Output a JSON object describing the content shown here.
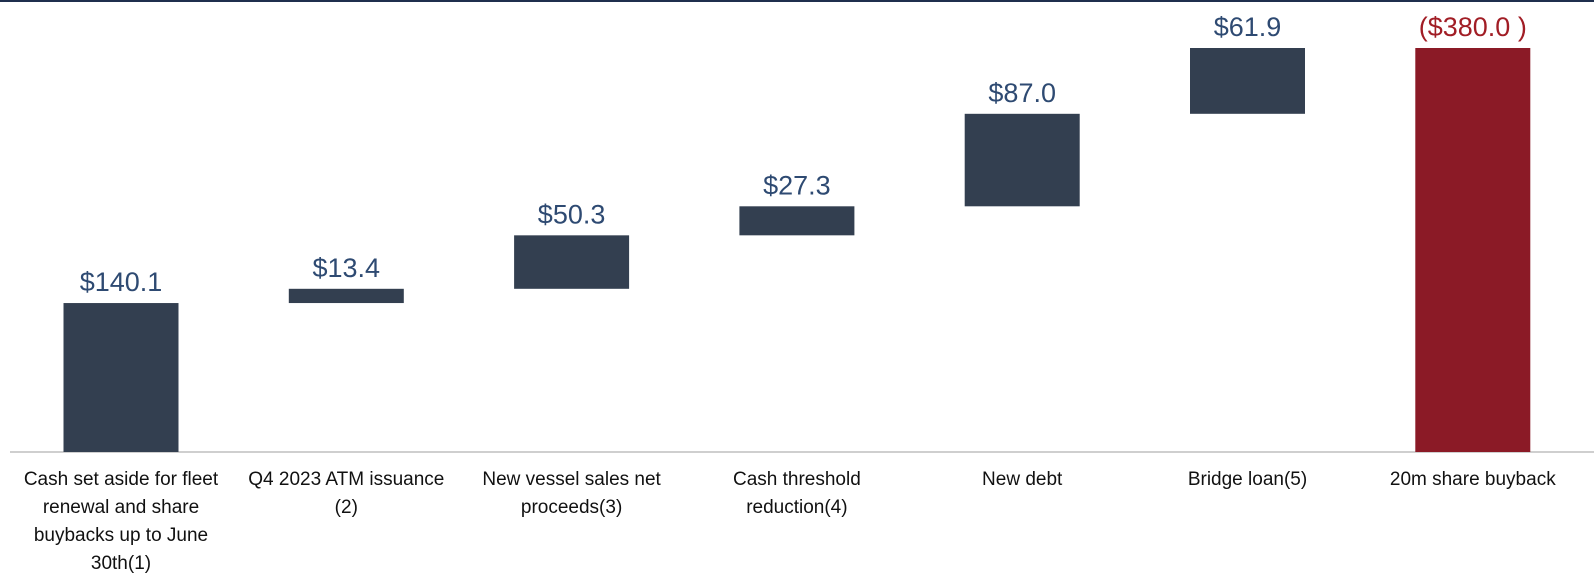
{
  "chart_data": {
    "type": "waterfall",
    "categories": [
      "Cash set aside for fleet renewal and share buybacks up to June 30th(1)",
      "Q4 2023 ATM issuance (2)",
      "New vessel sales net proceeds(3)",
      "Cash threshold reduction(4)",
      "New debt",
      "Bridge loan(5)",
      "20m share buyback"
    ],
    "values": [
      140.1,
      13.4,
      50.3,
      27.3,
      87.0,
      61.9,
      -380.0
    ],
    "value_labels": [
      "$140.1",
      "$13.4",
      "$50.3",
      "$27.3",
      "$87.0",
      "$61.9",
      "($380.0 )"
    ],
    "color": "#333f50",
    "negative_color": "#8b1a26",
    "label_color": "#2e4a72",
    "negative_label_color": "#a11d25"
  }
}
